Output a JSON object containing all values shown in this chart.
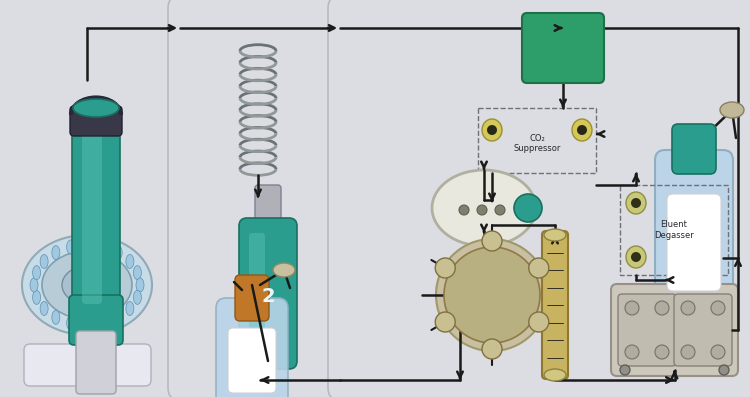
{
  "bg_color": "#d2d3d7",
  "panel_color": "#dcdde2",
  "panel_edge": "#b8bac0",
  "line_color": "#1a1a1a",
  "teal": "#2a9d8f",
  "teal_dark": "#1a7060",
  "teal_light": "#60c8bc",
  "green_box": "#2d9e70",
  "green_box_dark": "#1e7050",
  "bottle_blue": "#b8d4e8",
  "bottle_blue2": "#a8cce0",
  "gold": "#c8b460",
  "gold_dark": "#907830",
  "co2_label": "CO₂\nSuppressor",
  "degasser_label": "Eluent\nDegasser",
  "gray_device": "#c8c4b8",
  "gray_device_dark": "#909088"
}
